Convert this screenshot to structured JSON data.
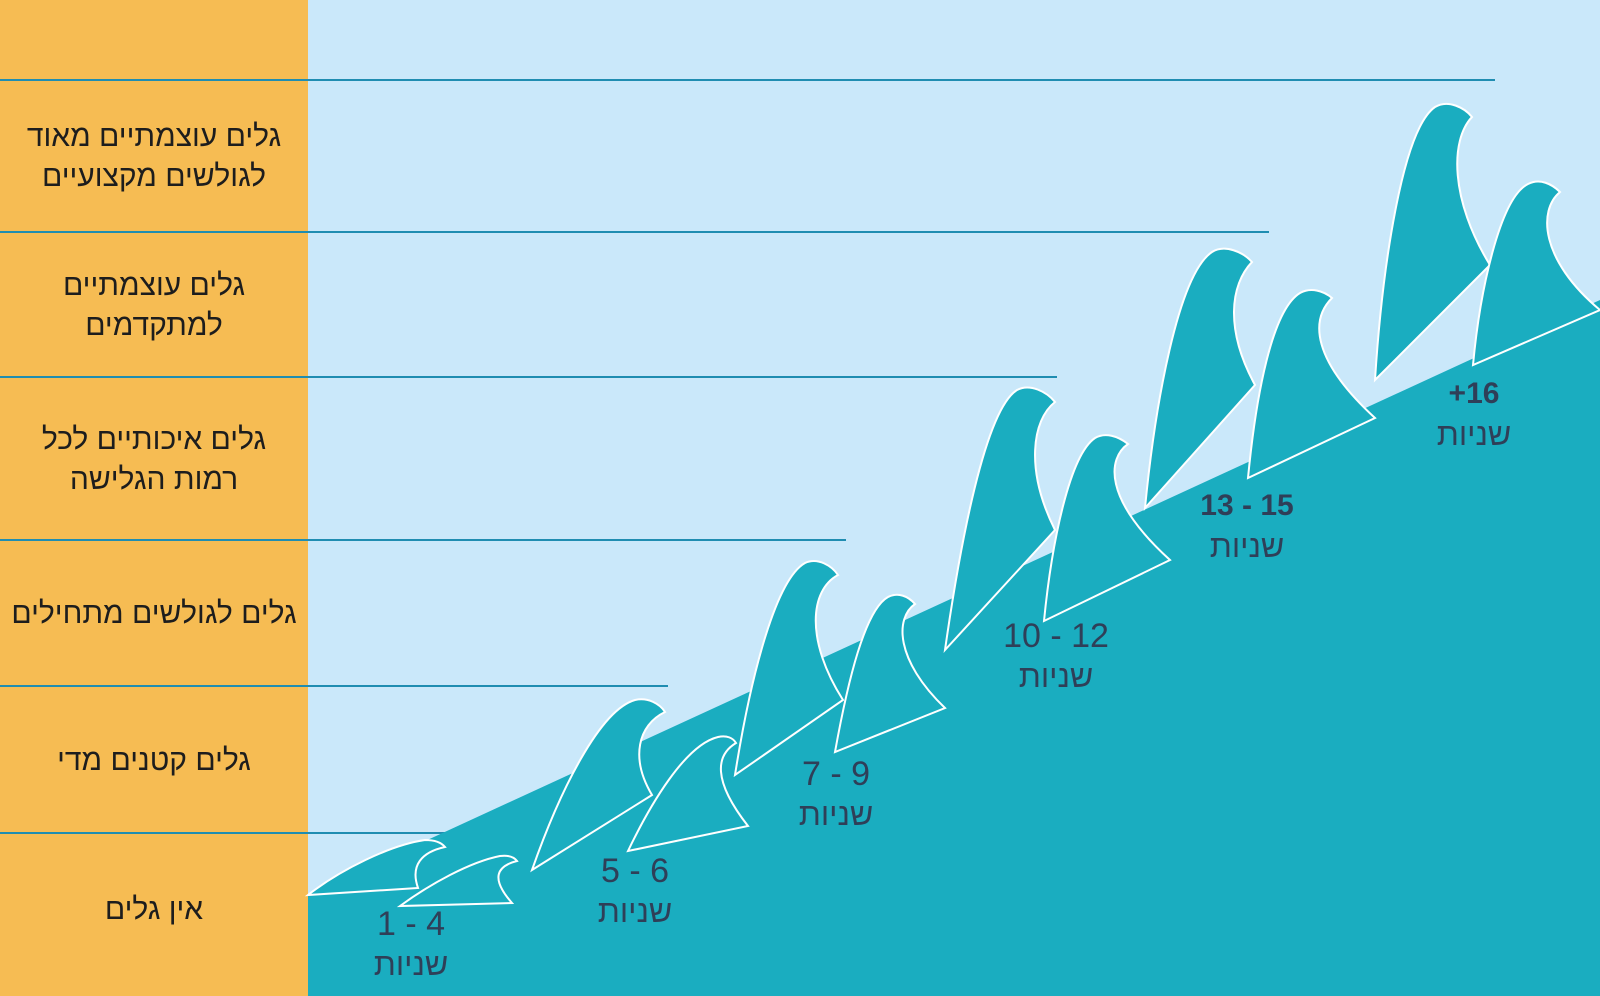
{
  "categories": [
    {
      "label": "גלים עוצמתיים מאוד לגולשים מקצועיים"
    },
    {
      "label": "גלים עוצמתיים למתקדמים"
    },
    {
      "label": "גלים איכותיים לכל רמות הגלישה"
    },
    {
      "label": "גלים לגולשים מתחילים"
    },
    {
      "label": "גלים קטנים מדי"
    },
    {
      "label": "אין גלים"
    }
  ],
  "ages": [
    {
      "range": "1 - 4",
      "unit": "שניות"
    },
    {
      "range": "5 - 6",
      "unit": "שניות"
    },
    {
      "range": "7 - 9",
      "unit": "שניות"
    },
    {
      "range": "10 - 12",
      "unit": "שניות"
    },
    {
      "range": "13 - 15",
      "unit": "שניות"
    },
    {
      "range": "+16",
      "unit": "שניות"
    }
  ],
  "colors": {
    "sidebar": "#F6BC53",
    "sky": "#CAE8FA",
    "wave": "#1AADC0",
    "line": "#1F8DB1",
    "label": "#2f3f58"
  }
}
